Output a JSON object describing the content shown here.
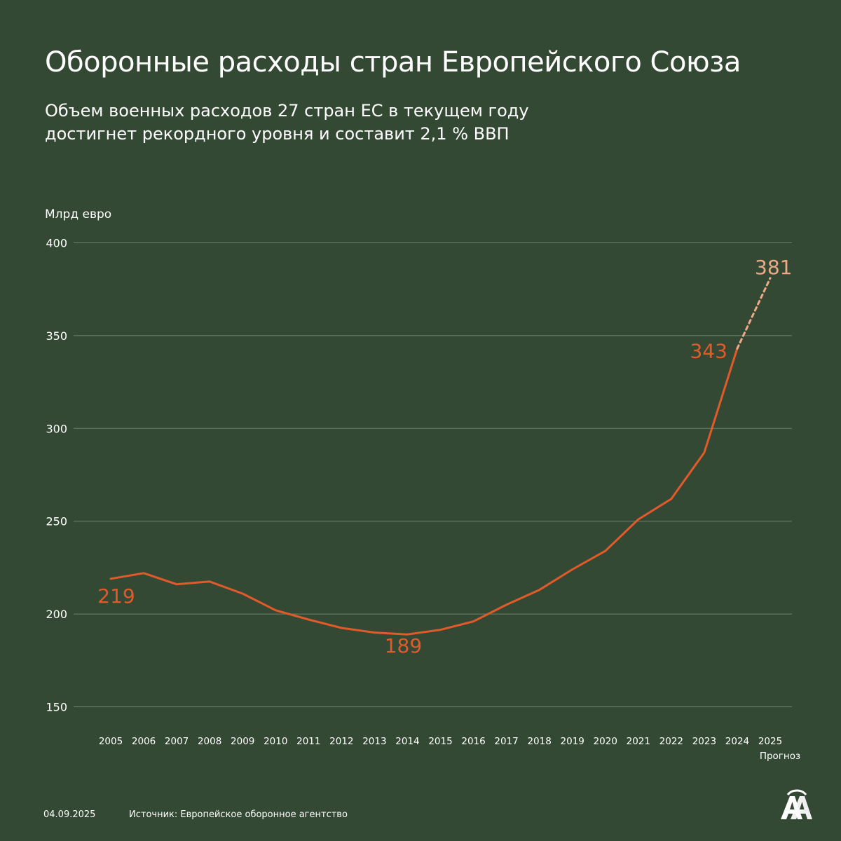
{
  "title": "Оборонные расходы стран Европейского Союза",
  "subtitle": {
    "line1": "Объем военных расходов 27 стран ЕС в текущем году",
    "line2": "достигнет рекордного уровня и составит 2,1 % ВВП"
  },
  "unit_label": "Млрд евро",
  "forecast_label": "Прогноз",
  "footer": {
    "date": "04.09.2025",
    "source": "Источник: Европейское оборонное агентство"
  },
  "logo": "AA",
  "colors": {
    "background": "#344934",
    "line": "#E05A2A",
    "forecast": "#F0A987",
    "grid": "#6E816C",
    "text": "#FFFFFF"
  },
  "chart_data": {
    "type": "line",
    "title": "Оборонные расходы стран Европейского Союза",
    "ylabel": "Млрд евро",
    "ylim": [
      150,
      400
    ],
    "yticks": [
      150,
      200,
      250,
      300,
      350,
      400
    ],
    "grid": true,
    "x": [
      "2005",
      "2006",
      "2007",
      "2008",
      "2009",
      "2010",
      "2011",
      "2012",
      "2013",
      "2014",
      "2015",
      "2016",
      "2017",
      "2018",
      "2019",
      "2020",
      "2021",
      "2022",
      "2023",
      "2024",
      "2025"
    ],
    "series": [
      {
        "values": [
          219,
          222,
          216,
          217.5,
          211,
          202,
          197,
          192.5,
          190,
          189,
          191.5,
          196,
          205,
          213,
          224,
          234,
          251,
          262,
          287,
          343,
          null
        ]
      },
      {
        "values": [
          null,
          null,
          null,
          null,
          null,
          null,
          null,
          null,
          null,
          null,
          null,
          null,
          null,
          null,
          null,
          null,
          null,
          null,
          null,
          343,
          381
        ],
        "note": "Прогноз"
      }
    ],
    "annotations": [
      {
        "x": "2005",
        "value": 219,
        "text": "219"
      },
      {
        "x": "2014",
        "value": 189,
        "text": "189"
      },
      {
        "x": "2024",
        "value": 343,
        "text": "343"
      },
      {
        "x": "2025",
        "value": 381,
        "text": "381"
      }
    ]
  }
}
